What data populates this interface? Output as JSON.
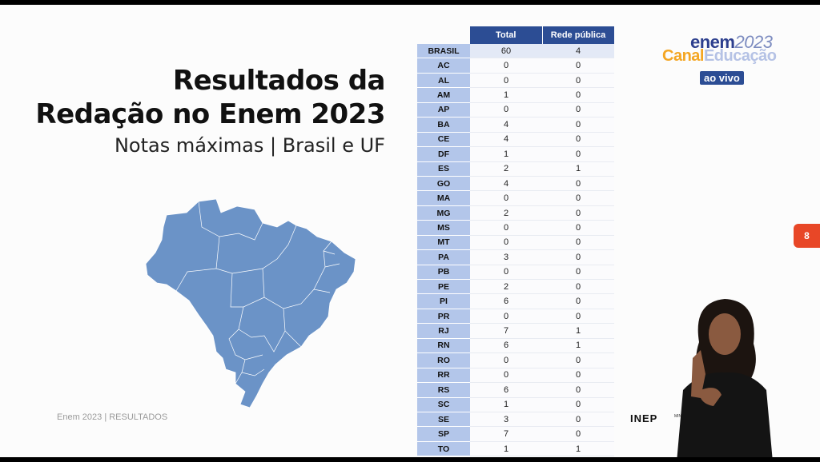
{
  "title": {
    "line1": "Resultados da",
    "line2": "Redação no Enem 2023"
  },
  "subtitle": "Notas máximas | Brasil e UF",
  "footer": "Enem 2023 | RESULTADOS",
  "table": {
    "headers": [
      "Total",
      "Rede pública"
    ],
    "rows": [
      {
        "uf": "BRASIL",
        "total": "60",
        "publica": "4"
      },
      {
        "uf": "AC",
        "total": "0",
        "publica": "0"
      },
      {
        "uf": "AL",
        "total": "0",
        "publica": "0"
      },
      {
        "uf": "AM",
        "total": "1",
        "publica": "0"
      },
      {
        "uf": "AP",
        "total": "0",
        "publica": "0"
      },
      {
        "uf": "BA",
        "total": "4",
        "publica": "0"
      },
      {
        "uf": "CE",
        "total": "4",
        "publica": "0"
      },
      {
        "uf": "DF",
        "total": "1",
        "publica": "0"
      },
      {
        "uf": "ES",
        "total": "2",
        "publica": "1"
      },
      {
        "uf": "GO",
        "total": "4",
        "publica": "0"
      },
      {
        "uf": "MA",
        "total": "0",
        "publica": "0"
      },
      {
        "uf": "MG",
        "total": "2",
        "publica": "0"
      },
      {
        "uf": "MS",
        "total": "0",
        "publica": "0"
      },
      {
        "uf": "MT",
        "total": "0",
        "publica": "0"
      },
      {
        "uf": "PA",
        "total": "3",
        "publica": "0"
      },
      {
        "uf": "PB",
        "total": "0",
        "publica": "0"
      },
      {
        "uf": "PE",
        "total": "2",
        "publica": "0"
      },
      {
        "uf": "PI",
        "total": "6",
        "publica": "0"
      },
      {
        "uf": "PR",
        "total": "0",
        "publica": "0"
      },
      {
        "uf": "RJ",
        "total": "7",
        "publica": "1"
      },
      {
        "uf": "RN",
        "total": "6",
        "publica": "1"
      },
      {
        "uf": "RO",
        "total": "0",
        "publica": "0"
      },
      {
        "uf": "RR",
        "total": "0",
        "publica": "0"
      },
      {
        "uf": "RS",
        "total": "6",
        "publica": "0"
      },
      {
        "uf": "SC",
        "total": "1",
        "publica": "0"
      },
      {
        "uf": "SE",
        "total": "3",
        "publica": "0"
      },
      {
        "uf": "SP",
        "total": "7",
        "publica": "0"
      },
      {
        "uf": "TO",
        "total": "1",
        "publica": "1"
      }
    ]
  },
  "logo": {
    "enem": "enem",
    "year": "2023",
    "canal": "Canal",
    "educacao": "Educação",
    "live": "ao vivo"
  },
  "slide_number": "8",
  "inep": "INEP",
  "ministry": "MINI",
  "colors": {
    "header_blue": "#2c4d94",
    "uf_cell": "#b3c6ea",
    "map_fill": "#6b93c7",
    "accent_orange": "#f4a623",
    "badge_red": "#e84727"
  }
}
